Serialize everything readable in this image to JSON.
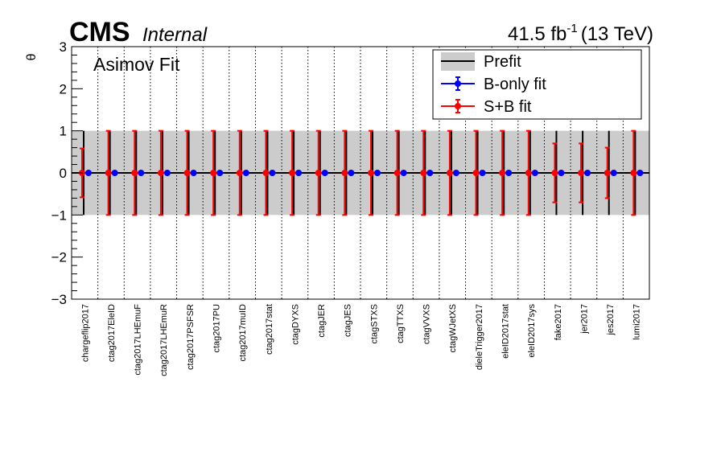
{
  "header": {
    "experiment": "CMS",
    "status": "Internal",
    "lumi_value": "41.5 fb",
    "lumi_exp": "-1",
    "energy": "(13 TeV)"
  },
  "chart_data": {
    "type": "scatter",
    "annotation": "Asimov Fit",
    "ylabel": "θ",
    "ylim": [
      -3,
      3
    ],
    "yticks": [
      3,
      2,
      1,
      0,
      -1,
      -2,
      -3
    ],
    "ytick_labels": [
      "3",
      "2",
      "1",
      "0",
      "−1",
      "−2",
      "−3"
    ],
    "grid": "vertical dotted lines between categories",
    "legend_position": "top-right",
    "legend": [
      "Prefit",
      "B-only fit",
      "S+B fit"
    ],
    "colors": {
      "prefit": "#000000",
      "bonly": "#0000ff",
      "sb": "#ff0000",
      "band": "#cccccc"
    },
    "categories": [
      "chargeflip2017",
      "ctag2017EleID",
      "ctag2017LHEmuF",
      "ctag2017LHEmuR",
      "ctag2017PSFSR",
      "ctag2017PU",
      "ctag2017muID",
      "ctag2017stat",
      "ctagDYXS",
      "ctagJER",
      "ctagJES",
      "ctagSTXS",
      "ctagTTXS",
      "ctagVVXS",
      "ctagWJetXS",
      "dieleTrigger2017",
      "eleID2017stat",
      "eleID2017sys",
      "fake2017",
      "jer2017",
      "jes2017",
      "lumi2017"
    ],
    "prefit": {
      "value": 0,
      "error": 1
    },
    "series": [
      {
        "name": "B-only fit",
        "values": [
          0,
          0,
          0,
          0,
          0,
          0,
          0,
          0,
          0,
          0,
          0,
          0,
          0,
          0,
          0,
          0,
          0,
          0,
          0,
          0,
          0,
          0
        ],
        "errors": [
          0,
          0,
          0,
          0,
          0,
          0,
          0,
          0,
          0,
          0,
          0,
          0,
          0,
          0,
          0,
          0,
          0,
          0,
          0,
          0,
          0,
          0
        ]
      },
      {
        "name": "S+B fit",
        "values": [
          0,
          0,
          0,
          0,
          0,
          0,
          0,
          0,
          0,
          0,
          0,
          0,
          0,
          0,
          0,
          0,
          0,
          0,
          0,
          0,
          0,
          0
        ],
        "errors": [
          0.58,
          1,
          1,
          1,
          1,
          1,
          1,
          1,
          1,
          1,
          1,
          1,
          1,
          1,
          1,
          1,
          1,
          1,
          0.7,
          0.7,
          0.6,
          1
        ]
      }
    ]
  }
}
